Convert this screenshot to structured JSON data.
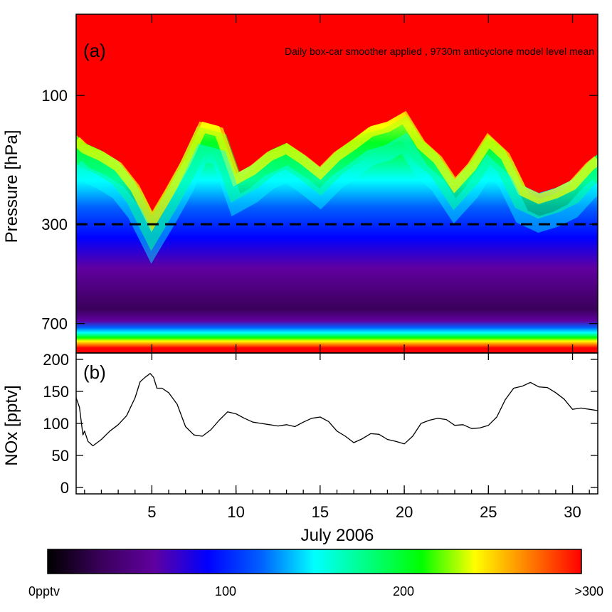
{
  "chart_data": [
    {
      "type": "heatmap",
      "panel_label": "(a)",
      "annotation": "Daily box-car smoother applied , 9730m anticyclone model level mean",
      "ylabel": "Pressure [hPa]",
      "yscale": "log",
      "yticks": [
        100,
        300,
        700
      ],
      "ytick_labels": [
        "100",
        "300",
        "700"
      ],
      "ylim": [
        900,
        50
      ],
      "xlim": [
        0.5,
        31.5
      ],
      "reference_line": {
        "value": 300,
        "style": "dashed"
      },
      "colormap": [
        "#000000",
        "#3a005a",
        "#6000a0",
        "#0000ff",
        "#0060ff",
        "#00ffff",
        "#00ff80",
        "#00ff00",
        "#ffff00",
        "#ff8000",
        "#ff0000"
      ],
      "upper_isopleth_pressure_hPa": {
        "x": [
          0.5,
          1,
          2,
          3,
          4,
          5,
          6,
          7,
          8,
          9,
          10,
          11,
          12,
          13,
          14,
          15,
          16,
          17,
          18,
          19,
          20,
          21,
          22,
          23,
          24,
          25,
          26,
          27,
          28,
          29,
          30,
          31,
          31.5
        ],
        "p": [
          140,
          150,
          160,
          175,
          210,
          280,
          220,
          170,
          125,
          130,
          195,
          180,
          160,
          150,
          165,
          185,
          160,
          145,
          130,
          125,
          115,
          145,
          165,
          205,
          175,
          140,
          160,
          215,
          230,
          220,
          205,
          175,
          165
        ]
      },
      "lower_boundary_pressure_hPa": 800
    },
    {
      "type": "line",
      "panel_label": "(b)",
      "xlabel": "July 2006",
      "ylabel": "NOx [pptv]",
      "xlim": [
        0.5,
        31.5
      ],
      "ylim": [
        -10,
        210
      ],
      "xticks": [
        5,
        10,
        15,
        20,
        25,
        30
      ],
      "xtick_labels": [
        "5",
        "10",
        "15",
        "20",
        "25",
        "30"
      ],
      "yticks": [
        0,
        50,
        100,
        150,
        200
      ],
      "ytick_labels": [
        "0",
        "50",
        "100",
        "150",
        "200"
      ],
      "x": [
        0.5,
        0.7,
        0.9,
        1.0,
        1.2,
        1.5,
        2.0,
        2.5,
        3.0,
        3.5,
        4.0,
        4.3,
        4.6,
        4.9,
        5.1,
        5.3,
        5.6,
        6.0,
        6.5,
        7.0,
        7.5,
        8.0,
        8.5,
        9.0,
        9.5,
        10.0,
        10.5,
        11.0,
        11.5,
        12.0,
        12.5,
        13.0,
        13.5,
        14.0,
        14.5,
        15.0,
        15.5,
        16.0,
        16.5,
        17.0,
        17.5,
        18.0,
        18.5,
        19.0,
        19.5,
        20.0,
        20.5,
        21.0,
        21.5,
        22.0,
        22.5,
        23.0,
        23.5,
        24.0,
        24.5,
        25.0,
        25.5,
        26.0,
        26.5,
        27.0,
        27.5,
        28.0,
        28.5,
        29.0,
        29.5,
        30.0,
        30.5,
        31.0,
        31.5
      ],
      "y": [
        140,
        125,
        82,
        88,
        72,
        65,
        75,
        88,
        98,
        112,
        140,
        165,
        172,
        178,
        172,
        155,
        155,
        148,
        130,
        95,
        82,
        80,
        90,
        105,
        118,
        115,
        108,
        102,
        100,
        98,
        96,
        98,
        95,
        102,
        108,
        110,
        103,
        88,
        80,
        70,
        76,
        84,
        83,
        75,
        72,
        68,
        80,
        100,
        105,
        108,
        106,
        97,
        98,
        92,
        93,
        97,
        110,
        137,
        155,
        158,
        164,
        157,
        156,
        148,
        138,
        122,
        124,
        122,
        120
      ]
    },
    {
      "type": "colorbar",
      "min": 0,
      "max": 300,
      "tick_values": [
        0,
        100,
        200,
        300
      ],
      "tick_labels": [
        "0pptv",
        "100",
        "200",
        ">300"
      ]
    }
  ]
}
